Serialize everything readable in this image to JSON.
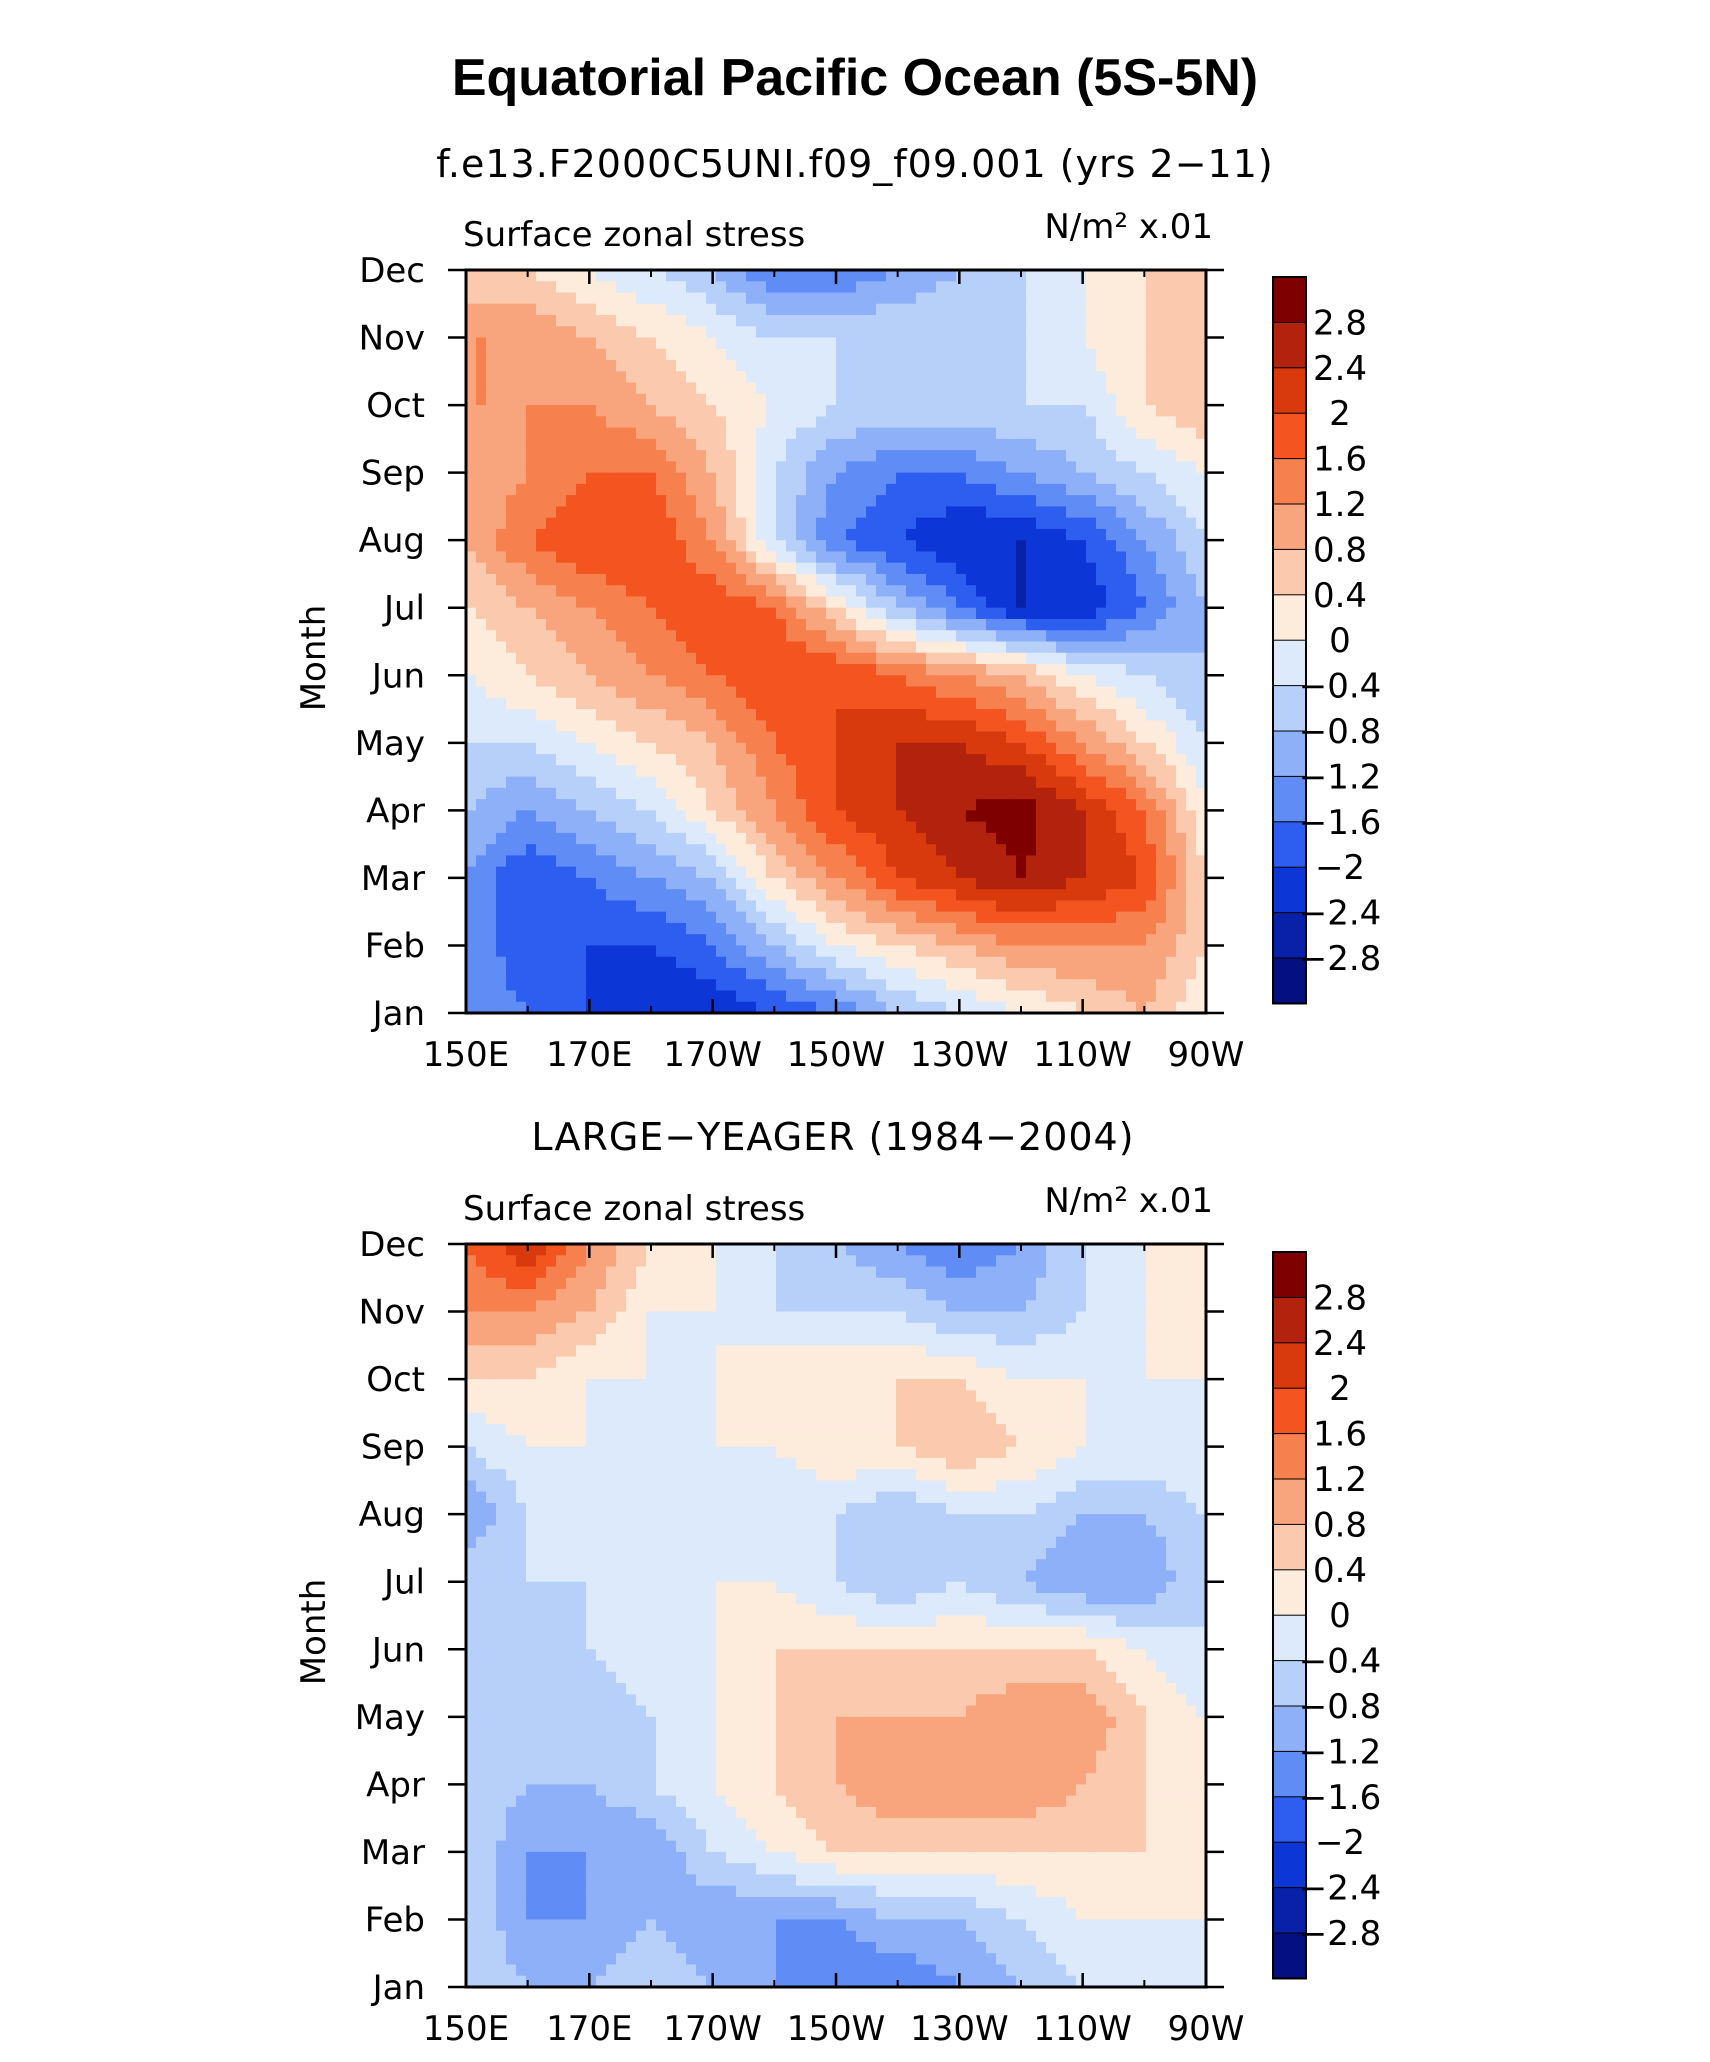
{
  "figure": {
    "title": "Equatorial Pacific Ocean (5S-5N)"
  },
  "colormap": {
    "levels": [
      "2.8",
      "2.4",
      "2",
      "1.6",
      "1.2",
      "0.8",
      "0.4",
      "0",
      "−0.4",
      "−0.8",
      "−1.2",
      "−1.6",
      "−2",
      "−2.4",
      "−2.8"
    ],
    "colors": [
      "#7f0000",
      "#b2220c",
      "#d93a0d",
      "#f4541f",
      "#f6804e",
      "#f8a47d",
      "#fbc9ae",
      "#fdebdc",
      "#dceafb",
      "#b6d0fa",
      "#8db0f8",
      "#5f8cf5",
      "#2d5ef0",
      "#0c36d6",
      "#0921a8",
      "#040f80"
    ]
  },
  "chart_data": [
    {
      "type": "heatmap",
      "title": "f.e13.F2000C5UNI.f09_f09.001 (yrs 2−11)",
      "left_string": "Surface zonal stress",
      "right_string": "N/m² x.01",
      "xlabel": "",
      "ylabel": "Month",
      "xticks": [
        "150E",
        "170E",
        "170W",
        "150W",
        "130W",
        "110W",
        "90W"
      ],
      "yticks": [
        "Jan",
        "Feb",
        "Mar",
        "Apr",
        "May",
        "Jun",
        "Jul",
        "Aug",
        "Sep",
        "Oct",
        "Nov",
        "Dec"
      ],
      "x_lon_east": [
        150,
        160,
        170,
        180,
        190,
        200,
        210,
        220,
        230,
        240,
        250,
        260,
        270
      ],
      "z": [
        [
          -1.2,
          -1.6,
          -2.0,
          -2.4,
          -2.4,
          -2.0,
          -1.6,
          -0.8,
          -0.4,
          0.0,
          0.4,
          0.8,
          0.0
        ],
        [
          -1.2,
          -2.0,
          -2.0,
          -2.0,
          -1.6,
          -0.8,
          0.0,
          0.4,
          0.8,
          1.2,
          1.2,
          1.2,
          0.4
        ],
        [
          -1.2,
          -2.0,
          -1.6,
          -1.2,
          -0.8,
          0.4,
          1.2,
          2.0,
          2.4,
          2.8,
          2.4,
          2.0,
          0.4
        ],
        [
          -0.8,
          -1.2,
          -0.8,
          -0.4,
          0.4,
          1.2,
          2.0,
          2.4,
          2.8,
          3.0,
          2.4,
          1.6,
          0.0
        ],
        [
          -0.4,
          -0.4,
          0.0,
          0.4,
          0.8,
          1.6,
          2.0,
          2.4,
          2.4,
          2.0,
          1.2,
          0.4,
          -0.4
        ],
        [
          0.0,
          0.4,
          0.8,
          1.2,
          1.6,
          2.0,
          2.0,
          1.6,
          1.2,
          0.8,
          0.0,
          -0.4,
          -0.8
        ],
        [
          0.4,
          0.8,
          1.2,
          1.6,
          2.0,
          1.6,
          0.4,
          -0.8,
          -1.6,
          -2.4,
          -2.4,
          -1.6,
          -0.8
        ],
        [
          0.8,
          1.6,
          2.0,
          2.0,
          1.2,
          -0.4,
          -1.6,
          -2.0,
          -2.4,
          -2.4,
          -2.0,
          -1.2,
          -0.4
        ],
        [
          0.8,
          1.2,
          1.6,
          1.6,
          0.8,
          -0.4,
          -1.2,
          -1.6,
          -1.6,
          -1.2,
          -0.8,
          -0.4,
          0.0
        ],
        [
          1.2,
          1.2,
          1.2,
          0.8,
          0.4,
          0.0,
          -0.4,
          -0.4,
          -0.4,
          -0.4,
          -0.4,
          0.4,
          0.8
        ],
        [
          1.2,
          1.2,
          0.8,
          0.4,
          0.0,
          -0.4,
          -0.4,
          -0.4,
          -0.4,
          -0.4,
          0.0,
          0.4,
          0.8
        ],
        [
          0.4,
          0.4,
          0.0,
          -0.4,
          -0.8,
          -1.6,
          -1.6,
          -1.2,
          -0.8,
          -0.4,
          0.0,
          0.4,
          0.4
        ]
      ]
    },
    {
      "type": "heatmap",
      "title": "LARGE−YEAGER (1984−2004)",
      "left_string": "Surface zonal stress",
      "right_string": "N/m² x.01",
      "xlabel": "",
      "ylabel": "Month",
      "xticks": [
        "150E",
        "170E",
        "170W",
        "150W",
        "130W",
        "110W",
        "90W"
      ],
      "yticks": [
        "Jan",
        "Feb",
        "Mar",
        "Apr",
        "May",
        "Jun",
        "Jul",
        "Aug",
        "Sep",
        "Oct",
        "Nov",
        "Dec"
      ],
      "x_lon_east": [
        150,
        160,
        170,
        180,
        190,
        200,
        210,
        220,
        230,
        240,
        250,
        260,
        270
      ],
      "z": [
        [
          -0.4,
          -0.8,
          -0.8,
          -0.4,
          -0.8,
          -1.2,
          -1.6,
          -1.6,
          -1.2,
          -0.8,
          -0.4,
          0.0,
          0.0
        ],
        [
          -0.4,
          -1.2,
          -1.2,
          -0.8,
          -1.2,
          -1.2,
          -1.2,
          -0.8,
          -0.8,
          -0.4,
          0.0,
          0.0,
          0.0
        ],
        [
          -0.4,
          -1.2,
          -1.2,
          -1.2,
          -0.4,
          0.0,
          0.4,
          0.4,
          0.4,
          0.4,
          0.4,
          0.4,
          0.0
        ],
        [
          -0.4,
          -0.8,
          -0.8,
          -0.4,
          0.0,
          0.4,
          0.8,
          1.2,
          1.2,
          1.2,
          0.8,
          0.4,
          0.0
        ],
        [
          -0.4,
          -0.4,
          -0.8,
          -0.4,
          0.0,
          0.4,
          0.8,
          0.8,
          0.8,
          1.2,
          1.2,
          0.4,
          0.0
        ],
        [
          -0.4,
          -0.4,
          -0.4,
          0.0,
          0.0,
          0.4,
          0.4,
          0.4,
          0.4,
          0.4,
          0.4,
          0.0,
          -0.4
        ],
        [
          -0.4,
          -0.4,
          -0.4,
          0.0,
          0.0,
          0.0,
          -0.4,
          -0.8,
          -0.4,
          -0.8,
          -1.2,
          -1.2,
          -0.4
        ],
        [
          -1.2,
          -0.4,
          0.0,
          0.0,
          0.0,
          -0.4,
          -0.4,
          -0.8,
          -0.4,
          -0.4,
          -0.8,
          -0.8,
          -0.4
        ],
        [
          -0.4,
          0.0,
          0.0,
          0.0,
          0.0,
          0.0,
          0.4,
          0.4,
          0.8,
          0.4,
          0.0,
          0.0,
          0.0
        ],
        [
          0.4,
          0.4,
          0.0,
          0.0,
          0.0,
          0.4,
          0.4,
          0.4,
          0.4,
          0.0,
          0.0,
          0.0,
          0.0
        ],
        [
          1.2,
          1.2,
          0.8,
          0.0,
          0.0,
          -0.4,
          -0.4,
          -0.4,
          -0.8,
          -0.8,
          -0.4,
          0.0,
          0.4
        ],
        [
          1.6,
          2.4,
          1.2,
          0.4,
          0.0,
          -0.4,
          -0.8,
          -1.2,
          -1.6,
          -1.2,
          -0.4,
          0.0,
          0.0
        ]
      ]
    }
  ]
}
